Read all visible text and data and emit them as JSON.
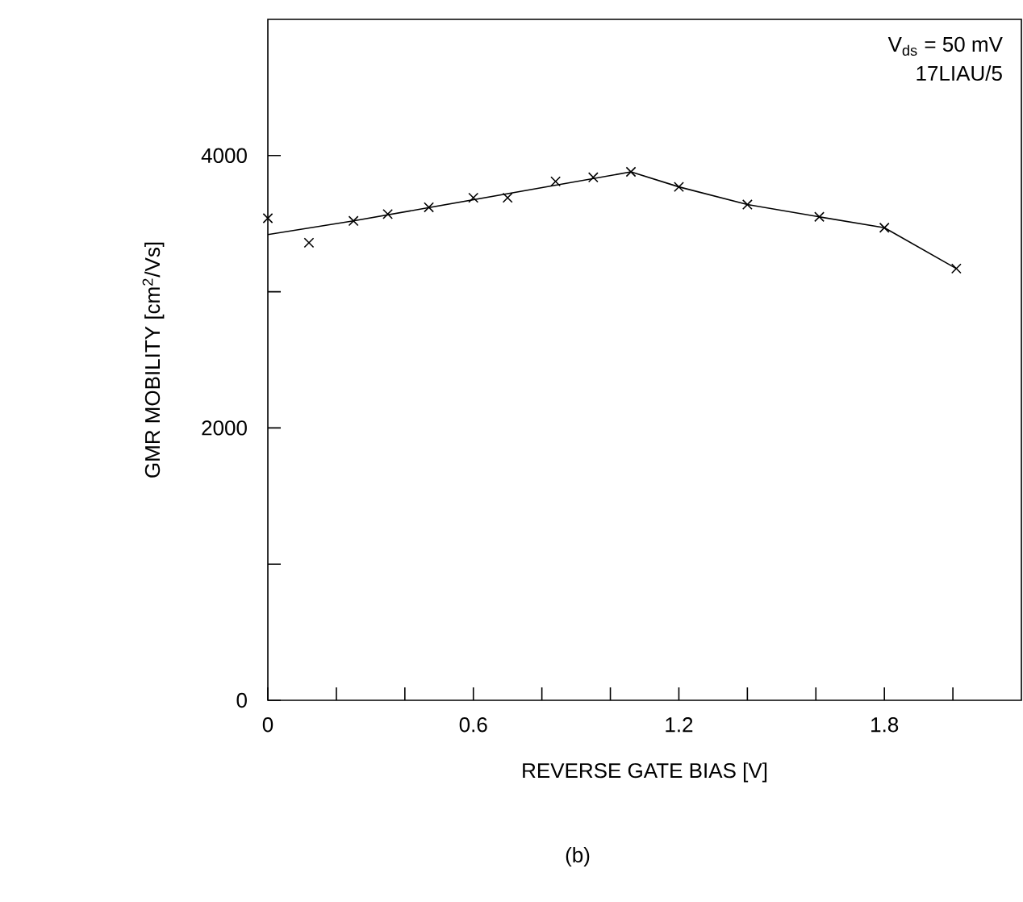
{
  "chart_data": {
    "type": "scatter",
    "xlabel": "REVERSE GATE BIAS [V]",
    "ylabel": "GMR MOBILITY [cm$^{2}$/Vs]",
    "xlim": [
      0,
      2.2
    ],
    "ylim": [
      0,
      5000
    ],
    "xticks": [
      0,
      {
        "value": 0.2,
        "label": null
      },
      {
        "value": 0.4,
        "label": null
      },
      0.6,
      {
        "value": 0.8,
        "label": null
      },
      {
        "value": 1.0,
        "label": null
      },
      1.2,
      {
        "value": 1.4,
        "label": null
      },
      {
        "value": 1.6,
        "label": null
      },
      1.8,
      {
        "value": 2.0,
        "label": null
      }
    ],
    "yticks": [
      0,
      {
        "value": 1000,
        "label": null
      },
      2000,
      {
        "value": 3000,
        "label": null
      },
      4000
    ],
    "series": [
      {
        "marker": "cross",
        "color": "#000000",
        "x": [
          0,
          0.12,
          0.25,
          0.35,
          0.47,
          0.6,
          0.7,
          0.84,
          0.95,
          1.06,
          1.2,
          1.4,
          1.61,
          1.8,
          2.01
        ],
        "values": [
          3540,
          3360,
          3520,
          3570,
          3620,
          3690,
          3690,
          3810,
          3840,
          3880,
          3770,
          3640,
          3550,
          3470,
          3170
        ]
      },
      {
        "type": "line",
        "color": "#000000",
        "x": [
          0,
          0.25,
          1.06,
          1.2,
          1.4,
          1.61,
          1.8,
          2.01
        ],
        "values": [
          3420,
          3520,
          3880,
          3770,
          3640,
          3550,
          3470,
          3170
        ]
      }
    ],
    "annotations": [
      "V$_{ds}$ = 50 mV",
      "17LIAU/5",
      "(b)"
    ]
  }
}
